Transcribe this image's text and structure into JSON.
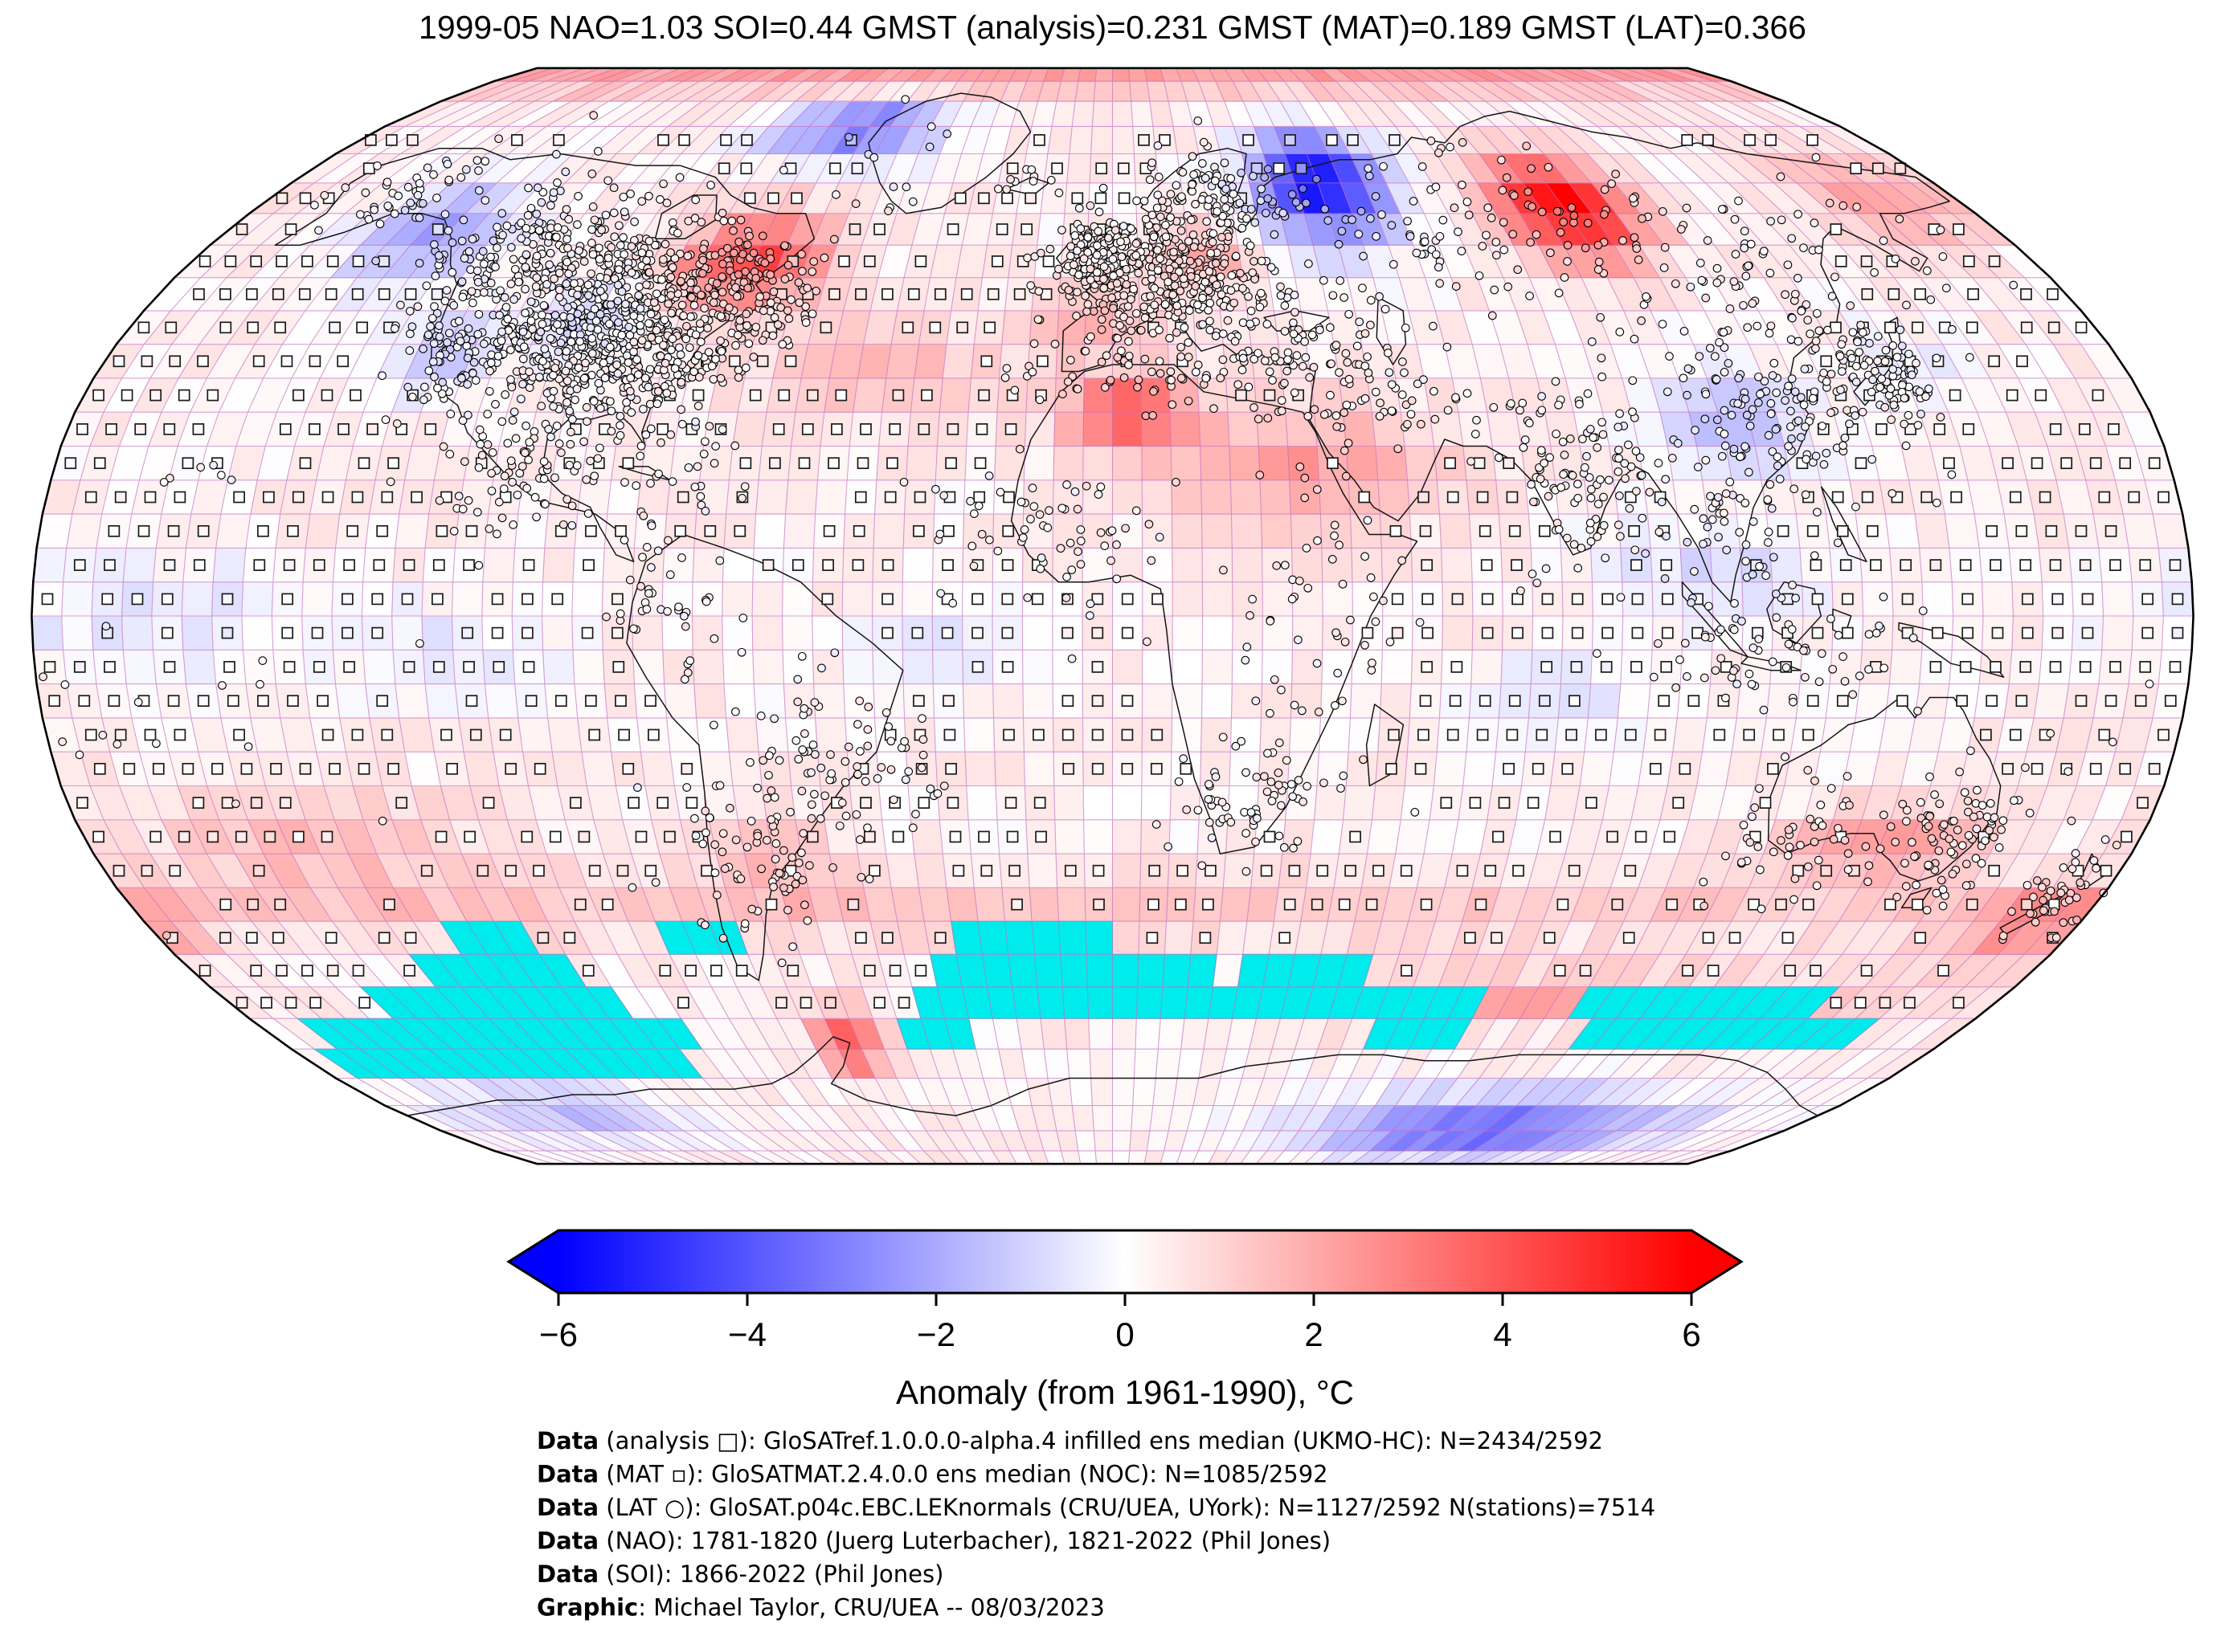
{
  "title": "1999-05 NAO=1.03 SOI=0.44 GMST (analysis)=0.231 GMST (MAT)=0.189 GMST (LAT)=0.366",
  "indices": {
    "date": "1999-05",
    "NAO": 1.03,
    "SOI": 0.44,
    "GMST_analysis": 0.231,
    "GMST_MAT": 0.189,
    "GMST_LAT": 0.366
  },
  "map": {
    "projection": "robinson",
    "grid_deg": 5,
    "anomaly_units": "degC",
    "base_anomaly": 0.3,
    "noise_amp": 0.4,
    "colors": {
      "graticule": "#c06ec0",
      "coast": "#141414",
      "outline": "#000000",
      "missing": "#00ebeb",
      "marker_stroke": "#1a1a1a"
    },
    "anomaly_blobs": [
      [
        -70,
        53,
        4.3,
        15,
        7
      ],
      [
        -62,
        75,
        -3.6,
        20,
        6
      ],
      [
        45,
        65,
        -6.0,
        14,
        9
      ],
      [
        95,
        61,
        5.8,
        14,
        8
      ],
      [
        -137,
        57,
        -2.6,
        15,
        8
      ],
      [
        -120,
        39,
        -1.6,
        10,
        7
      ],
      [
        -96,
        44,
        -1.4,
        9,
        6
      ],
      [
        3,
        30,
        3.4,
        11,
        6
      ],
      [
        32,
        22,
        2.0,
        24,
        9
      ],
      [
        -4,
        44,
        2.0,
        11,
        5
      ],
      [
        18,
        53,
        1.6,
        11,
        5
      ],
      [
        107,
        29,
        -1.8,
        13,
        8
      ],
      [
        100,
        6,
        -1.2,
        18,
        8
      ],
      [
        135,
        -33,
        2.1,
        17,
        5
      ],
      [
        172,
        -46,
        2.0,
        14,
        6
      ],
      [
        100,
        -57,
        2.3,
        55,
        4
      ],
      [
        -57,
        -64,
        3.4,
        7,
        6
      ],
      [
        100,
        -80,
        -4.0,
        45,
        7
      ],
      [
        -140,
        -77,
        -1.8,
        30,
        6
      ],
      [
        -160,
        0,
        -1.0,
        30,
        8
      ],
      [
        -110,
        -5,
        -0.8,
        18,
        7
      ],
      [
        -40,
        36,
        1.3,
        22,
        8
      ],
      [
        165,
        63,
        2.0,
        16,
        7
      ],
      [
        -28,
        -5,
        -0.7,
        15,
        8
      ],
      [
        75,
        -12,
        -0.8,
        18,
        7
      ],
      [
        -140,
        -33,
        1.2,
        30,
        8
      ],
      [
        -60,
        -35,
        1.1,
        12,
        8
      ],
      [
        142,
        36,
        -0.8,
        10,
        6
      ]
    ],
    "zonal_bands": [
      [
        87,
        2.0,
        5
      ],
      [
        -43,
        0.9,
        5
      ]
    ],
    "missing_cells": [
      {
        "lat": -50,
        "lon_ranges": [
          [
            -125,
            -110
          ],
          [
            -85,
            -70
          ],
          [
            -30,
            0
          ]
        ]
      },
      {
        "lat": -55,
        "lon_ranges": [
          [
            -135,
            -105
          ],
          [
            -35,
            20
          ],
          [
            25,
            50
          ]
        ]
      },
      {
        "lat": -60,
        "lon_ranges": [
          [
            -150,
            -100
          ],
          [
            -40,
            75
          ],
          [
            95,
            145
          ]
        ]
      },
      {
        "lat": -65,
        "lon_ranges": [
          [
            -170,
            -90
          ],
          [
            -45,
            -30
          ],
          [
            55,
            75
          ],
          [
            100,
            160
          ]
        ]
      },
      {
        "lat": -70,
        "lon_ranges": [
          [
            -175,
            -95
          ]
        ]
      }
    ],
    "station_clusters": [
      [
        10,
        50,
        11,
        5.5,
        430
      ],
      [
        20,
        64,
        7,
        3.5,
        80
      ],
      [
        -2.5,
        53.5,
        4,
        2.5,
        70
      ],
      [
        -85,
        39,
        9,
        6,
        330
      ],
      [
        -97,
        42,
        7,
        6,
        220
      ],
      [
        -114,
        41,
        8,
        7,
        180
      ],
      [
        -105,
        53,
        12,
        4.5,
        180
      ],
      [
        -80,
        48,
        8,
        5,
        120
      ],
      [
        -64,
        47,
        5,
        4,
        80
      ],
      [
        -120,
        55,
        8,
        6,
        80
      ],
      [
        -150,
        63,
        8,
        4,
        50
      ],
      [
        -100,
        21,
        7,
        5,
        70
      ],
      [
        -76,
        20,
        8,
        4,
        30
      ],
      [
        -62,
        -35,
        8,
        8,
        90
      ],
      [
        -45,
        -21,
        8,
        6,
        70
      ],
      [
        -75,
        2,
        5,
        9,
        45
      ],
      [
        136,
        36,
        6,
        4.5,
        110
      ],
      [
        114,
        31,
        10,
        8,
        150
      ],
      [
        78,
        22,
        8,
        8,
        110
      ],
      [
        102,
        13,
        8,
        8,
        70
      ],
      [
        113,
        -6,
        13,
        4,
        60
      ],
      [
        147,
        -33,
        6,
        4.5,
        90
      ],
      [
        121,
        -30,
        9,
        6,
        50
      ],
      [
        172,
        -41,
        4,
        4,
        45
      ],
      [
        25,
        -28,
        7,
        5,
        65
      ],
      [
        -8,
        11,
        13,
        6,
        70
      ],
      [
        35,
        2,
        8,
        10,
        55
      ],
      [
        4,
        35,
        13,
        2.5,
        55
      ],
      [
        44,
        33,
        11,
        6,
        65
      ],
      [
        75,
        57,
        30,
        6,
        160
      ],
      [
        135,
        55,
        18,
        7,
        55
      ],
      [
        34,
        39.5,
        8,
        4,
        55
      ],
      [
        -19,
        65,
        3,
        1.5,
        10
      ],
      [
        -48,
        67,
        7,
        6,
        14
      ],
      [
        -165,
        -14,
        22,
        9,
        20
      ],
      [
        -157,
        21,
        3,
        2,
        6
      ]
    ],
    "mat_markers": {
      "lat_min": -57.5,
      "lat_max": 72.5,
      "size": 13
    }
  },
  "colorbar": {
    "min": -6,
    "max": 6,
    "ticks": [
      "−6",
      "−4",
      "−2",
      "0",
      "2",
      "4",
      "6"
    ],
    "label": "Anomaly (from 1961-1990), °C",
    "extend": "both",
    "color_neg": "#0000ff",
    "color_mid": "#ffffff",
    "color_pos": "#ff0000"
  },
  "footer": {
    "lines": [
      {
        "prefix": "Data",
        "text": " (analysis □): GloSATref.1.0.0.0-alpha.4 infilled ens median (UKMO-HC): N=2434/2592"
      },
      {
        "prefix": "Data",
        "text": " (MAT ▫): GloSATMAT.2.4.0.0 ens median (NOC): N=1085/2592"
      },
      {
        "prefix": "Data",
        "text": " (LAT ○): GloSAT.p04c.EBC.LEKnormals (CRU/UEA, UYork): N=1127/2592 N(stations)=7514"
      },
      {
        "prefix": "Data",
        "text": " (NAO): 1781-1820 (Juerg Luterbacher), 1821-2022 (Phil Jones)"
      },
      {
        "prefix": "Data",
        "text": " (SOI): 1866-2022 (Phil Jones)"
      },
      {
        "prefix": "Graphic",
        "text": ": Michael Taylor, CRU/UEA -- 08/03/2023"
      }
    ]
  }
}
